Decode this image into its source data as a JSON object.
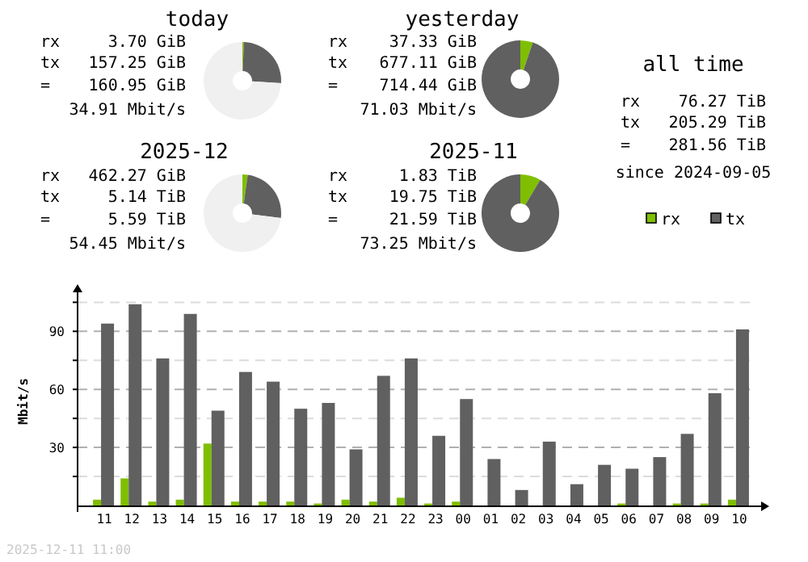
{
  "chart_data": [
    {
      "type": "donut",
      "title": "today",
      "categories": [
        null,
        null,
        null
      ],
      "values": [
        0.6,
        25.4,
        74.0
      ],
      "colors": [
        "#7fbf00",
        "#606060",
        "#f0f0f0"
      ],
      "annotations": [
        "rx",
        "3.70 GiB",
        "tx",
        "157.25 GiB",
        "=",
        "160.95 GiB",
        "34.91 Mbit/s"
      ]
    },
    {
      "type": "donut",
      "title": "yesterday",
      "categories": [
        null,
        null
      ],
      "values": [
        5.2,
        94.8
      ],
      "colors": [
        "#7fbf00",
        "#606060"
      ],
      "annotations": [
        "rx",
        "37.33 GiB",
        "tx",
        "677.11 GiB",
        "=",
        "714.44 GiB",
        "71.03 Mbit/s"
      ]
    },
    {
      "type": "other",
      "title": "all time",
      "annotations": [
        "rx",
        "76.27 TiB",
        "tx",
        "205.29 TiB",
        "=",
        "281.56 TiB",
        "since 2024-09-05"
      ]
    },
    {
      "type": "donut",
      "title": "2025-12",
      "categories": [
        null,
        null,
        null
      ],
      "values": [
        2.2,
        24.8,
        73.0
      ],
      "colors": [
        "#7fbf00",
        "#606060",
        "#f0f0f0"
      ],
      "annotations": [
        "rx",
        "462.27 GiB",
        "tx",
        "5.14 TiB",
        "=",
        "5.59 TiB",
        "54.45 Mbit/s"
      ]
    },
    {
      "type": "donut",
      "title": "2025-11",
      "categories": [
        null,
        null
      ],
      "values": [
        8.5,
        91.5
      ],
      "colors": [
        "#7fbf00",
        "#606060"
      ],
      "annotations": [
        "rx",
        "1.83 TiB",
        "tx",
        "19.75 TiB",
        "=",
        "21.59 TiB",
        "73.25 Mbit/s"
      ]
    },
    {
      "type": "bar",
      "ylabel": "Mbit/s",
      "categories": [
        "11",
        "12",
        "13",
        "14",
        "15",
        "16",
        "17",
        "18",
        "19",
        "20",
        "21",
        "22",
        "23",
        "00",
        "01",
        "02",
        "03",
        "04",
        "05",
        "06",
        "07",
        "08",
        "09",
        "10"
      ],
      "series": [
        {
          "name": "rx",
          "color": "#7fbf00",
          "values": [
            3,
            14,
            2,
            3,
            32,
            2,
            2,
            2,
            1,
            3,
            2,
            4,
            1,
            2,
            0,
            0,
            0,
            0,
            0,
            1,
            0,
            1,
            1,
            3
          ]
        },
        {
          "name": "tx",
          "color": "#606060",
          "values": [
            94,
            104,
            76,
            99,
            49,
            69,
            64,
            50,
            53,
            29,
            67,
            76,
            36,
            55,
            24,
            8,
            33,
            11,
            21,
            19,
            25,
            37,
            58,
            91
          ]
        }
      ],
      "ylim": [
        0,
        111
      ],
      "yticks": [
        {
          "value": 15,
          "label": null
        },
        30,
        {
          "value": 45,
          "label": null
        },
        60,
        {
          "value": 75,
          "label": null
        },
        90,
        {
          "value": 105,
          "label": null
        }
      ],
      "grid": "y",
      "legend": "top right",
      "annotations": [
        "2025-12-11 11:00"
      ]
    }
  ]
}
